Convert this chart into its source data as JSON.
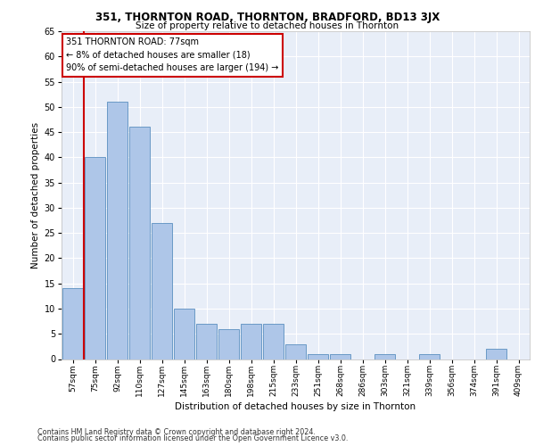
{
  "title1": "351, THORNTON ROAD, THORNTON, BRADFORD, BD13 3JX",
  "title2": "Size of property relative to detached houses in Thornton",
  "xlabel": "Distribution of detached houses by size in Thornton",
  "ylabel": "Number of detached properties",
  "footnote1": "Contains HM Land Registry data © Crown copyright and database right 2024.",
  "footnote2": "Contains public sector information licensed under the Open Government Licence v3.0.",
  "bar_labels": [
    "57sqm",
    "75sqm",
    "92sqm",
    "110sqm",
    "127sqm",
    "145sqm",
    "163sqm",
    "180sqm",
    "198sqm",
    "215sqm",
    "233sqm",
    "251sqm",
    "268sqm",
    "286sqm",
    "303sqm",
    "321sqm",
    "339sqm",
    "356sqm",
    "374sqm",
    "391sqm",
    "409sqm"
  ],
  "bar_values": [
    14,
    40,
    51,
    46,
    27,
    10,
    7,
    6,
    7,
    7,
    3,
    1,
    1,
    0,
    1,
    0,
    1,
    0,
    0,
    2,
    0
  ],
  "bar_color": "#aec6e8",
  "bar_edge_color": "#5a8fc0",
  "ylim": [
    0,
    65
  ],
  "yticks": [
    0,
    5,
    10,
    15,
    20,
    25,
    30,
    35,
    40,
    45,
    50,
    55,
    60,
    65
  ],
  "vline_color": "#cc0000",
  "annotation_lines": [
    "351 THORNTON ROAD: 77sqm",
    "← 8% of detached houses are smaller (18)",
    "90% of semi-detached houses are larger (194) →"
  ],
  "annotation_box_color": "#cc0000",
  "bg_color": "#e8eef8"
}
